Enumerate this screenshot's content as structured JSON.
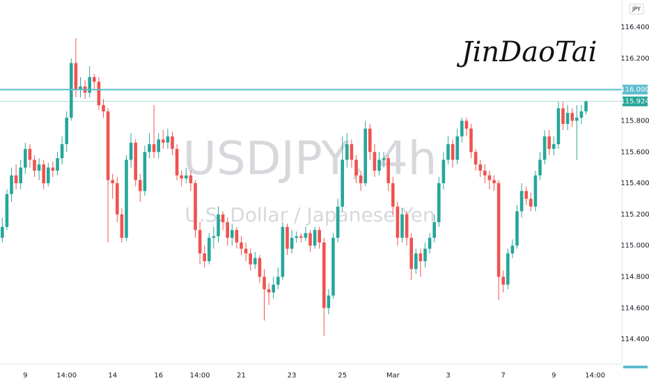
{
  "chart_data": {
    "type": "candlestick",
    "title": "USDJPY, 4h",
    "subtitle": "U.S. Dollar / Japanese Yen",
    "currency": "JPY",
    "signature": "JinDaoTai",
    "up_color": "#26a69a",
    "down_color": "#ef5350",
    "ylim": [
      114.24,
      116.574
    ],
    "yticks": [
      {
        "value": 114.4,
        "label": "114.400"
      },
      {
        "value": 114.6,
        "label": "114.600"
      },
      {
        "value": 114.8,
        "label": "114.800"
      },
      {
        "value": 115.0,
        "label": "115.000"
      },
      {
        "value": 115.2,
        "label": "115.200"
      },
      {
        "value": 115.4,
        "label": "115.400"
      },
      {
        "value": 115.6,
        "label": "115.600"
      },
      {
        "value": 115.8,
        "label": "115.800"
      },
      {
        "value": 116.2,
        "label": "116.200"
      },
      {
        "value": 116.4,
        "label": "116.400"
      }
    ],
    "grid": false,
    "level_line": {
      "value": 116.0,
      "label": "116.000",
      "color": "#5bbccc"
    },
    "last_price": {
      "value": 115.924,
      "label": "115.924",
      "color": "#26a69a"
    },
    "categories": [
      null,
      null,
      null,
      null,
      null,
      "9",
      null,
      null,
      null,
      null,
      null,
      null,
      null,
      null,
      "14:00",
      null,
      null,
      null,
      null,
      null,
      null,
      null,
      null,
      null,
      "14",
      null,
      null,
      null,
      null,
      null,
      null,
      null,
      null,
      null,
      "16",
      null,
      null,
      null,
      null,
      null,
      null,
      null,
      null,
      "14:00",
      null,
      null,
      null,
      null,
      null,
      null,
      null,
      null,
      "21",
      null,
      null,
      null,
      null,
      null,
      null,
      null,
      null,
      null,
      null,
      "23",
      null,
      null,
      null,
      null,
      null,
      null,
      null,
      null,
      null,
      null,
      "25",
      null,
      null,
      null,
      null,
      null,
      null,
      null,
      null,
      null,
      null,
      "Mar",
      null,
      null,
      null,
      null,
      null,
      null,
      null,
      null,
      null,
      null,
      null,
      "3",
      null,
      null,
      null,
      null,
      null,
      null,
      null,
      null,
      null,
      null,
      null,
      "7",
      null,
      null,
      null,
      null,
      null,
      null,
      null,
      null,
      null,
      null,
      "9",
      null,
      null,
      null,
      null,
      null,
      null,
      null,
      null,
      "14:00"
    ],
    "open": [
      115.05,
      115.12,
      115.33,
      115.45,
      115.4,
      115.5,
      115.62,
      115.55,
      115.48,
      115.52,
      115.4,
      115.5,
      115.48,
      115.56,
      115.65,
      115.82,
      116.17,
      116.0,
      116.02,
      115.98,
      116.08,
      116.05,
      115.9,
      115.86,
      115.42,
      115.4,
      115.2,
      115.05,
      115.55,
      115.66,
      115.42,
      115.35,
      115.6,
      115.65,
      115.6,
      115.68,
      115.66,
      115.7,
      115.62,
      115.45,
      115.43,
      115.45,
      115.4,
      115.1,
      114.95,
      114.9,
      115.05,
      115.06,
      115.2,
      115.15,
      115.05,
      115.1,
      115.02,
      114.98,
      114.95,
      114.88,
      114.92,
      114.8,
      114.72,
      114.7,
      114.75,
      114.8,
      115.12,
      114.98,
      115.05,
      115.06,
      115.05,
      115.08,
      115.0,
      115.1,
      115.02,
      114.6,
      114.68,
      115.05,
      115.25,
      115.55,
      115.65,
      115.55,
      115.45,
      115.4,
      115.75,
      115.6,
      115.48,
      115.55,
      115.56,
      115.4,
      115.25,
      115.05,
      115.2,
      115.05,
      114.85,
      114.95,
      114.9,
      114.98,
      115.05,
      115.15,
      115.4,
      115.55,
      115.65,
      115.55,
      115.7,
      115.8,
      115.75,
      115.6,
      115.52,
      115.48,
      115.45,
      115.42,
      115.4,
      114.8,
      114.75,
      114.95,
      115.0,
      115.22,
      115.35,
      115.3,
      115.25,
      115.45,
      115.55,
      115.7,
      115.62,
      115.65,
      115.88,
      115.78,
      115.85,
      115.8,
      115.82,
      115.86,
      null,
      null
    ],
    "close": [
      115.12,
      115.33,
      115.45,
      115.4,
      115.5,
      115.62,
      115.55,
      115.48,
      115.52,
      115.4,
      115.5,
      115.48,
      115.56,
      115.65,
      115.82,
      116.17,
      116.0,
      116.02,
      115.98,
      116.08,
      116.05,
      115.9,
      115.86,
      115.42,
      115.4,
      115.2,
      115.05,
      115.55,
      115.66,
      115.42,
      115.35,
      115.6,
      115.65,
      115.6,
      115.68,
      115.66,
      115.7,
      115.62,
      115.45,
      115.43,
      115.45,
      115.4,
      115.1,
      114.95,
      114.9,
      115.05,
      115.06,
      115.2,
      115.15,
      115.05,
      115.1,
      115.02,
      114.98,
      114.95,
      114.88,
      114.92,
      114.8,
      114.72,
      114.7,
      114.75,
      114.8,
      115.12,
      114.98,
      115.05,
      115.06,
      115.05,
      115.08,
      115.0,
      115.1,
      115.02,
      114.6,
      114.68,
      115.05,
      115.25,
      115.55,
      115.65,
      115.55,
      115.45,
      115.4,
      115.75,
      115.6,
      115.48,
      115.55,
      115.56,
      115.4,
      115.25,
      115.05,
      115.2,
      115.05,
      114.85,
      114.95,
      114.9,
      114.98,
      115.05,
      115.15,
      115.4,
      115.55,
      115.65,
      115.55,
      115.7,
      115.8,
      115.75,
      115.6,
      115.52,
      115.48,
      115.45,
      115.42,
      115.4,
      114.8,
      114.75,
      114.95,
      115.0,
      115.22,
      115.35,
      115.3,
      115.25,
      115.45,
      115.55,
      115.7,
      115.62,
      115.65,
      115.88,
      115.78,
      115.85,
      115.8,
      115.82,
      115.86,
      115.924,
      null,
      null
    ],
    "high": [
      115.18,
      115.36,
      115.5,
      115.52,
      115.55,
      115.66,
      115.65,
      115.58,
      115.56,
      115.55,
      115.53,
      115.54,
      115.6,
      115.7,
      115.86,
      116.2,
      116.33,
      116.08,
      116.06,
      116.15,
      116.1,
      116.08,
      115.94,
      115.88,
      115.46,
      115.44,
      115.24,
      115.58,
      115.72,
      115.68,
      115.46,
      115.64,
      115.72,
      115.9,
      115.72,
      115.74,
      115.75,
      115.73,
      115.65,
      115.48,
      115.5,
      115.48,
      115.42,
      115.15,
      115.0,
      115.08,
      115.12,
      115.25,
      115.22,
      115.18,
      115.14,
      115.12,
      115.06,
      115.02,
      114.98,
      114.96,
      114.94,
      114.85,
      114.76,
      114.8,
      114.86,
      115.15,
      115.14,
      115.1,
      115.09,
      115.08,
      115.12,
      115.1,
      115.12,
      115.12,
      115.05,
      114.72,
      115.08,
      115.3,
      115.7,
      115.72,
      115.68,
      115.58,
      115.48,
      115.8,
      115.78,
      115.65,
      115.6,
      115.6,
      115.58,
      115.44,
      115.28,
      115.24,
      115.22,
      115.08,
      114.98,
      114.98,
      115.02,
      115.08,
      115.2,
      115.44,
      115.6,
      115.7,
      115.68,
      115.75,
      115.82,
      115.82,
      115.78,
      115.62,
      115.55,
      115.52,
      115.48,
      115.45,
      115.42,
      114.84,
      114.98,
      115.04,
      115.26,
      115.4,
      115.38,
      115.34,
      115.48,
      115.6,
      115.74,
      115.74,
      115.7,
      115.92,
      115.92,
      115.9,
      115.88,
      115.9,
      115.9,
      115.93,
      null,
      null
    ],
    "low": [
      115.02,
      115.1,
      115.28,
      115.36,
      115.36,
      115.46,
      115.5,
      115.44,
      115.42,
      115.36,
      115.38,
      115.44,
      115.45,
      115.52,
      115.6,
      115.8,
      115.95,
      115.95,
      115.94,
      115.95,
      116.0,
      115.87,
      115.82,
      115.02,
      115.3,
      115.15,
      115.02,
      115.03,
      115.5,
      115.38,
      115.28,
      115.32,
      115.56,
      115.56,
      115.56,
      115.62,
      115.62,
      115.58,
      115.42,
      115.38,
      115.4,
      115.35,
      115.05,
      114.88,
      114.86,
      114.88,
      114.98,
      115.02,
      115.1,
      115.0,
      115.0,
      114.98,
      114.94,
      114.9,
      114.84,
      114.85,
      114.76,
      114.52,
      114.62,
      114.66,
      114.72,
      114.78,
      114.94,
      114.95,
      115.02,
      115.02,
      115.03,
      114.96,
      114.98,
      114.98,
      114.42,
      114.56,
      114.66,
      115.02,
      115.22,
      115.5,
      115.5,
      115.4,
      115.35,
      115.38,
      115.55,
      115.44,
      115.45,
      115.5,
      115.35,
      115.2,
      115.0,
      115.02,
      115.0,
      114.78,
      114.82,
      114.8,
      114.86,
      114.95,
      115.02,
      115.12,
      115.36,
      115.52,
      115.5,
      115.52,
      115.66,
      115.7,
      115.56,
      115.48,
      115.44,
      115.4,
      115.36,
      115.35,
      114.65,
      114.7,
      114.72,
      114.92,
      114.98,
      115.18,
      115.26,
      115.22,
      115.22,
      115.42,
      115.52,
      115.58,
      115.58,
      115.62,
      115.74,
      115.74,
      115.76,
      115.55,
      115.78,
      115.84,
      null,
      null
    ]
  }
}
